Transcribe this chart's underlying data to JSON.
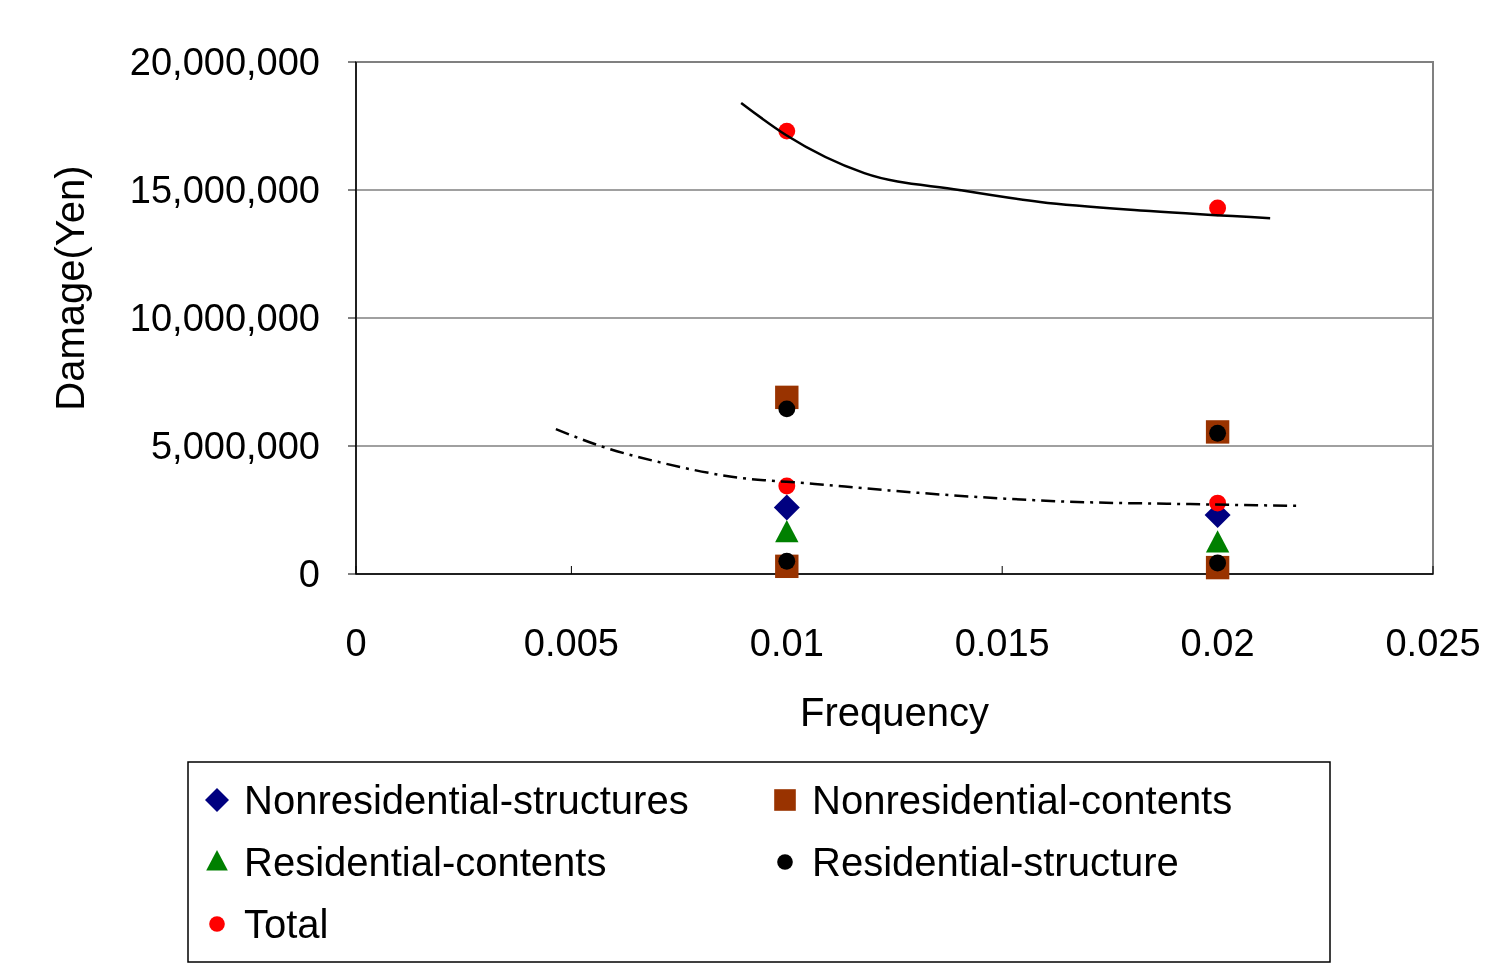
{
  "chart_data": {
    "type": "scatter",
    "xlabel": "Frequency",
    "ylabel": "Damage(Yen)",
    "xlim": [
      0,
      0.025
    ],
    "xticks": [
      0,
      0.005,
      0.01,
      0.015,
      0.02,
      0.025
    ],
    "ylim": [
      0,
      20000000
    ],
    "yticks": [
      {
        "value": 0,
        "label": "0"
      },
      {
        "value": 5000000,
        "label": "5,000,000"
      },
      {
        "value": 10000000,
        "label": "10,000,000"
      },
      {
        "value": 15000000,
        "label": "15,000,000"
      },
      {
        "value": 20000000,
        "label": "20,000,000"
      }
    ],
    "grid": "y",
    "legend": "bottom",
    "series": [
      {
        "name": "Nonresidential-structures",
        "color": "#000080",
        "marker": "diamond",
        "x": [
          0.01,
          0.02
        ],
        "values": [
          2600000,
          2300000
        ]
      },
      {
        "name": "Nonresidential-contents",
        "color": "#993300",
        "marker": "square",
        "x": [
          0.01,
          0.01,
          0.02,
          0.02
        ],
        "values": [
          6900000,
          300000,
          5550000,
          250000
        ]
      },
      {
        "name": "Residential-contents",
        "color": "#008000",
        "marker": "triangle",
        "x": [
          0.01,
          0.02
        ],
        "values": [
          1600000,
          1200000
        ]
      },
      {
        "name": "Residential-structure",
        "color": "#000000",
        "marker": "circle",
        "x": [
          0.01,
          0.01,
          0.02,
          0.02
        ],
        "values": [
          6450000,
          500000,
          5500000,
          430000
        ]
      },
      {
        "name": "Total",
        "color": "#ff0000",
        "marker": "circle",
        "x": [
          0.01,
          0.01,
          0.02,
          0.02
        ],
        "values": [
          17300000,
          3440000,
          14300000,
          2770000
        ]
      },
      {
        "type": "line",
        "color": "#000000",
        "marker": "none",
        "line_style": "solid",
        "x": [
          0.00894,
          0.00998,
          0.0118,
          0.014,
          0.01588,
          0.01843,
          0.02122
        ],
        "values": [
          18400000,
          17150000,
          15660000,
          15000000,
          14530000,
          14180000,
          13900000
        ]
      },
      {
        "type": "line",
        "color": "#000000",
        "marker": "none",
        "line_style": "dashed",
        "x": [
          0.00464,
          0.00578,
          0.00706,
          0.00868,
          0.01065,
          0.01298,
          0.01646,
          0.01936,
          0.02191
        ],
        "values": [
          5660000,
          4940000,
          4360000,
          3810000,
          3520000,
          3180000,
          2830000,
          2730000,
          2660000
        ]
      }
    ]
  }
}
